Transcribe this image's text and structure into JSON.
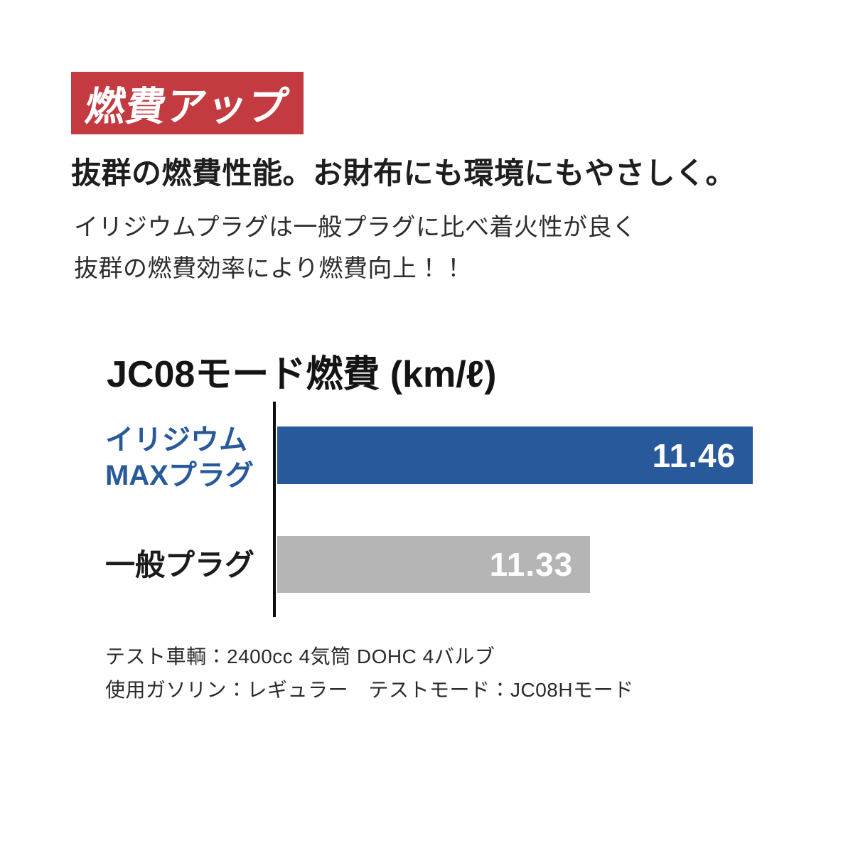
{
  "badge": {
    "label": "燃費アップ",
    "bg_color": "#c43a41",
    "text_color": "#ffffff"
  },
  "headline": "抜群の燃費性能。お財布にも環境にもやさしく。",
  "body_lines": {
    "line1": "イリジウムプラグは一般プラグに比べ着火性が良く",
    "line2": "抜群の燃費効率により燃費向上！！"
  },
  "chart": {
    "title": "JC08モード燃費 (km/ℓ)",
    "bars": [
      {
        "label_lines": [
          "イリジウム",
          "MAXプラグ"
        ],
        "value": "11.46",
        "color": "#285a9b",
        "label_color": "#285a9b"
      },
      {
        "label_lines": [
          "一般プラグ"
        ],
        "value": "11.33",
        "color": "#b5b5b5",
        "label_color": "#1c1c1c"
      }
    ]
  },
  "chart_data": {
    "type": "bar",
    "orientation": "horizontal",
    "title": "JC08モード燃費 (km/ℓ)",
    "categories": [
      "イリジウムMAXプラグ",
      "一般プラグ"
    ],
    "values": [
      11.46,
      11.33
    ],
    "unit": "km/ℓ",
    "xlim": [
      11.08,
      11.54
    ],
    "bar_colors": [
      "#285a9b",
      "#b5b5b5"
    ],
    "value_label_color": "#ffffff",
    "axis_color": "#0d0d0d",
    "grid": false,
    "legend": "none"
  },
  "footnotes": {
    "line1": "テスト車輌：2400cc 4気筒 DOHC 4バルブ",
    "line2": "使用ガソリン：レギュラー　テストモード：JC08Hモード"
  }
}
